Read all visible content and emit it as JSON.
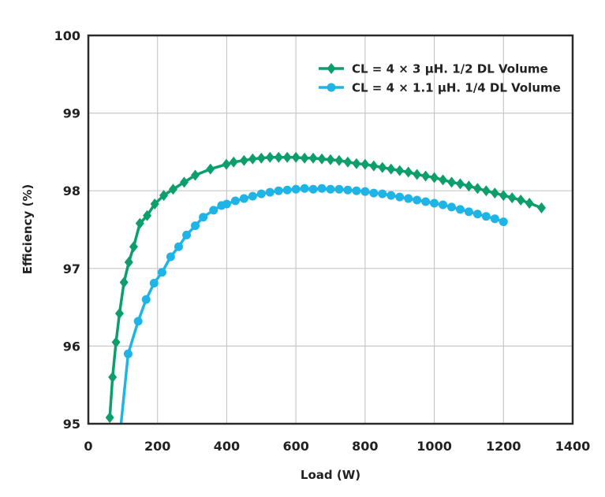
{
  "chart_data": {
    "type": "line",
    "title": "",
    "xlabel": "Load (W)",
    "ylabel": "Efficiency (%)",
    "xlim": [
      0,
      1400
    ],
    "ylim": [
      95,
      100
    ],
    "xticks": [
      0,
      200,
      400,
      600,
      800,
      1000,
      1200,
      1400
    ],
    "yticks": [
      95,
      96,
      97,
      98,
      99,
      100
    ],
    "xtick_labels": [
      "0",
      "200",
      "400",
      "600",
      "800",
      "1000",
      "1200",
      "1400"
    ],
    "ytick_labels": [
      "95",
      "96",
      "97",
      "98",
      "99",
      "100"
    ],
    "grid": true,
    "legend_position": "top-right",
    "series": [
      {
        "name": "CL = 4 × 3 µH. 1/2 DL Volume",
        "color": "#0c9f6c",
        "marker": "diamond",
        "x": [
          62,
          70,
          80,
          90,
          103,
          117,
          131,
          149,
          170,
          192,
          218,
          245,
          277,
          309,
          353,
          399,
          420,
          450,
          475,
          500,
          525,
          550,
          575,
          600,
          625,
          650,
          675,
          700,
          725,
          750,
          775,
          800,
          825,
          850,
          875,
          900,
          925,
          950,
          975,
          1000,
          1025,
          1050,
          1075,
          1100,
          1125,
          1150,
          1175,
          1200,
          1225,
          1250,
          1275,
          1310
        ],
        "y": [
          95.08,
          95.6,
          96.05,
          96.42,
          96.82,
          97.08,
          97.28,
          97.58,
          97.68,
          97.83,
          97.94,
          98.02,
          98.11,
          98.2,
          98.28,
          98.34,
          98.37,
          98.39,
          98.41,
          98.42,
          98.43,
          98.43,
          98.43,
          98.43,
          98.42,
          98.42,
          98.41,
          98.4,
          98.39,
          98.37,
          98.35,
          98.34,
          98.32,
          98.3,
          98.28,
          98.26,
          98.24,
          98.21,
          98.19,
          98.17,
          98.14,
          98.11,
          98.09,
          98.06,
          98.03,
          98.0,
          97.97,
          97.94,
          97.91,
          97.88,
          97.84,
          97.78
        ]
      },
      {
        "name": "CL = 4 × 1.1 µH. 1/4 DL Volume",
        "color": "#1fb4e6",
        "marker": "circle",
        "x": [
          90,
          115,
          144,
          167,
          190,
          213,
          238,
          261,
          284,
          309,
          332,
          362,
          385,
          400,
          425,
          450,
          475,
          500,
          525,
          550,
          575,
          600,
          625,
          650,
          675,
          700,
          725,
          750,
          775,
          800,
          825,
          850,
          875,
          900,
          925,
          950,
          975,
          1000,
          1025,
          1050,
          1075,
          1100,
          1125,
          1150,
          1175,
          1200
        ],
        "y": [
          94.8,
          95.9,
          96.32,
          96.6,
          96.81,
          96.95,
          97.15,
          97.28,
          97.43,
          97.55,
          97.66,
          97.75,
          97.81,
          97.83,
          97.87,
          97.9,
          97.93,
          97.96,
          97.98,
          98.0,
          98.01,
          98.02,
          98.03,
          98.02,
          98.03,
          98.02,
          98.02,
          98.01,
          98.0,
          97.99,
          97.97,
          97.96,
          97.94,
          97.92,
          97.9,
          97.88,
          97.86,
          97.84,
          97.82,
          97.79,
          97.76,
          97.73,
          97.7,
          97.67,
          97.64,
          97.6
        ]
      }
    ]
  }
}
